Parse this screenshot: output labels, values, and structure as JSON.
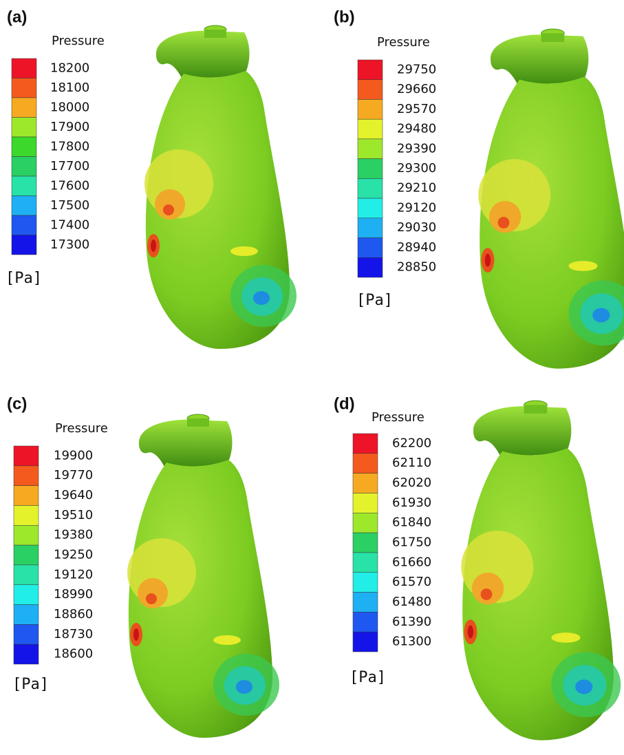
{
  "colorbar_colors": [
    "#ee1428",
    "#f45a1e",
    "#f6aa22",
    "#e4f22c",
    "#9ee82c",
    "#3cd82c",
    "#2ad064",
    "#28e2a8",
    "#22eee8",
    "#1eb0f2",
    "#1e58f0",
    "#1414e8"
  ],
  "panels": [
    {
      "label": "(a)",
      "legend_title": "Pressure",
      "ticks": [
        18200,
        18100,
        18000,
        17900,
        17800,
        17700,
        17600,
        17500,
        17400,
        17300
      ],
      "unit": "[Pa]"
    },
    {
      "label": "(b)",
      "legend_title": "Pressure",
      "ticks": [
        29750,
        29660,
        29570,
        29480,
        29390,
        29300,
        29210,
        29120,
        29030,
        28940,
        28850
      ],
      "unit": "[Pa]"
    },
    {
      "label": "(c)",
      "legend_title": "Pressure",
      "ticks": [
        19900,
        19770,
        19640,
        19510,
        19380,
        19250,
        19120,
        18990,
        18860,
        18730,
        18600
      ],
      "unit": "[Pa]"
    },
    {
      "label": "(d)",
      "legend_title": "Pressure",
      "ticks": [
        62200,
        62110,
        62020,
        61930,
        61840,
        61750,
        61660,
        61570,
        61480,
        61390,
        61300
      ],
      "unit": "[Pa]"
    }
  ]
}
